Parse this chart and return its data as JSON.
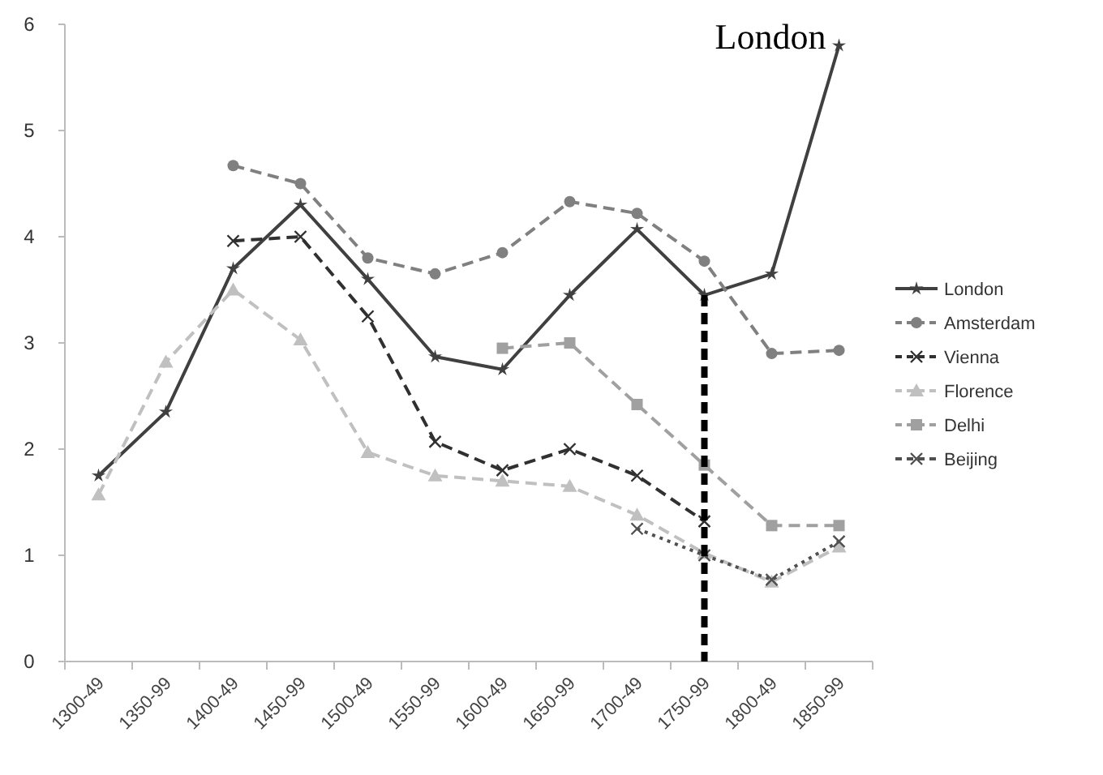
{
  "chart_data": {
    "type": "line",
    "categories": [
      "1300-49",
      "1350-99",
      "1400-49",
      "1450-99",
      "1500-49",
      "1550-99",
      "1600-49",
      "1650-99",
      "1700-49",
      "1750-99",
      "1800-49",
      "1850-99"
    ],
    "ylim": [
      0,
      6
    ],
    "yticks": [
      0,
      1,
      2,
      3,
      4,
      5,
      6
    ],
    "grid": false,
    "legend": "right",
    "series": [
      {
        "name": "London",
        "color": "#404040",
        "line_style": "solid",
        "marker": "star",
        "values": [
          1.75,
          2.35,
          3.7,
          4.3,
          3.6,
          2.87,
          2.75,
          3.45,
          4.07,
          3.45,
          3.65,
          5.8
        ]
      },
      {
        "name": "Amsterdam",
        "color": "#808080",
        "line_style": "dashed",
        "marker": "circle",
        "values": [
          null,
          null,
          4.67,
          4.5,
          3.8,
          3.65,
          3.85,
          4.33,
          4.22,
          3.77,
          2.9,
          2.93
        ]
      },
      {
        "name": "Vienna",
        "color": "#303030",
        "line_style": "dashed",
        "marker": "cross",
        "values": [
          null,
          null,
          3.96,
          4.0,
          3.25,
          2.07,
          1.8,
          2.0,
          1.75,
          1.32,
          null,
          null
        ]
      },
      {
        "name": "Florence",
        "color": "#c0c0c0",
        "line_style": "dashed",
        "marker": "triangle",
        "values": [
          1.57,
          2.82,
          3.5,
          3.03,
          1.97,
          1.75,
          1.7,
          1.65,
          1.38,
          1.02,
          0.75,
          1.08
        ]
      },
      {
        "name": "Delhi",
        "color": "#a0a0a0",
        "line_style": "dashed",
        "marker": "square",
        "values": [
          null,
          null,
          null,
          null,
          null,
          null,
          2.95,
          3.0,
          2.42,
          1.85,
          1.28,
          1.28
        ]
      },
      {
        "name": "Beijing",
        "color": "#505050",
        "line_style": "dotted",
        "marker": "cross",
        "values": [
          null,
          null,
          null,
          null,
          null,
          null,
          null,
          null,
          1.25,
          1.0,
          0.77,
          1.13
        ]
      }
    ],
    "ref_lines": [
      {
        "axis": "x",
        "value": "1750-99",
        "color": "#000000",
        "line_style": "dashed"
      }
    ],
    "annotations": [
      {
        "text": "London",
        "x": "1850-99",
        "y": 5.8
      }
    ]
  }
}
